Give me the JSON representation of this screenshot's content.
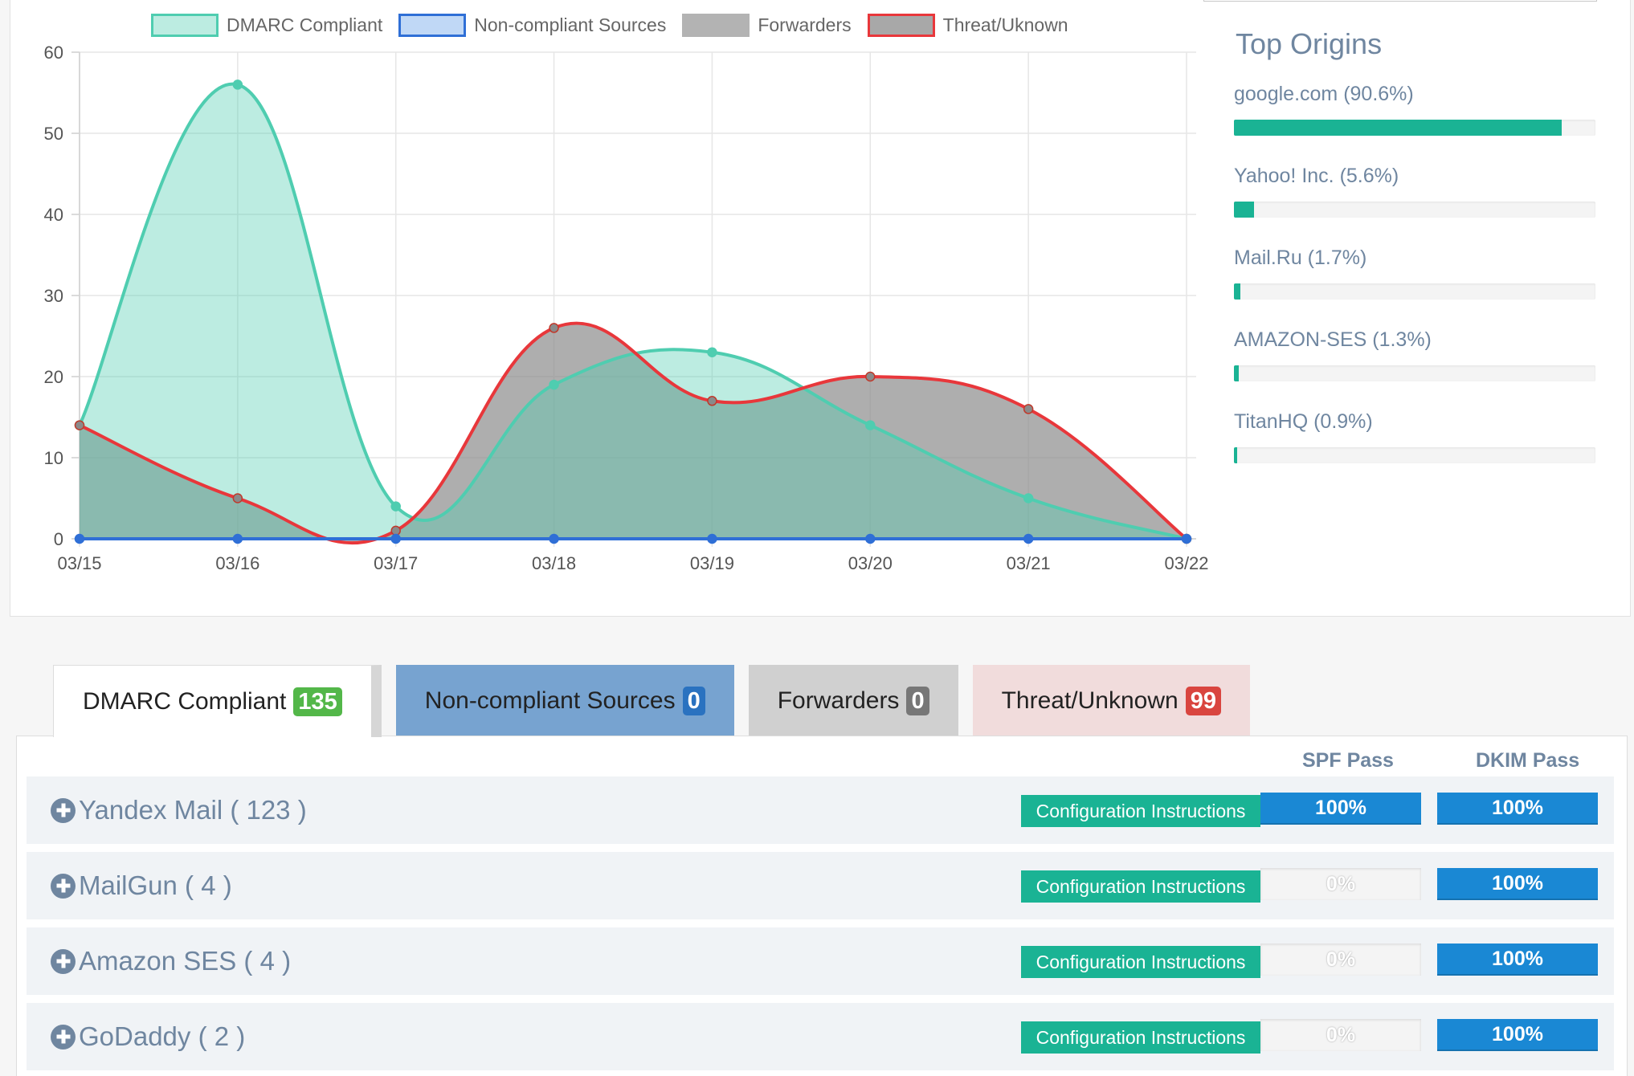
{
  "chart_data": {
    "type": "area",
    "categories": [
      "03/15",
      "03/16",
      "03/17",
      "03/18",
      "03/19",
      "03/20",
      "03/21",
      "03/22"
    ],
    "ylim": [
      0,
      60
    ],
    "yticks": [
      0,
      10,
      20,
      30,
      40,
      50,
      60
    ],
    "grid": true,
    "legend_position": "top",
    "series": [
      {
        "name": "DMARC Compliant",
        "values": [
          14,
          56,
          4,
          19,
          23,
          14,
          5,
          0
        ],
        "stroke": "#4fcdb0",
        "fill": "rgba(79,205,176,0.38)"
      },
      {
        "name": "Non-compliant Sources",
        "values": [
          0,
          0,
          0,
          0,
          0,
          0,
          0,
          0
        ],
        "stroke": "#2f6fd6",
        "fill": "rgba(150,190,240,0.6)"
      },
      {
        "name": "Forwarders",
        "values": [
          0,
          0,
          0,
          0,
          0,
          0,
          0,
          0
        ],
        "stroke": "#b3b3b3",
        "fill": "rgba(160,160,160,0.6)"
      },
      {
        "name": "Threat/Uknown",
        "values": [
          14,
          5,
          1,
          26,
          17,
          20,
          16,
          0
        ],
        "stroke": "#e8373b",
        "fill": "rgba(140,140,140,0.7)"
      }
    ]
  },
  "origins": {
    "title": "Top Origins",
    "items": [
      {
        "label": "google.com (90.6%)",
        "percent": 90.6
      },
      {
        "label": "Yahoo! Inc. (5.6%)",
        "percent": 5.6
      },
      {
        "label": "Mail.Ru (1.7%)",
        "percent": 1.7
      },
      {
        "label": "AMAZON-SES (1.3%)",
        "percent": 1.3
      },
      {
        "label": "TitanHQ (0.9%)",
        "percent": 0.9
      }
    ]
  },
  "tabs": [
    {
      "label": "DMARC Compliant",
      "count": "135",
      "badge_color": "#53b749"
    },
    {
      "label": "Non-compliant Sources",
      "count": "0",
      "badge_color": "#2a72c0"
    },
    {
      "label": "Forwarders",
      "count": "0",
      "badge_color": "#777777"
    },
    {
      "label": "Threat/Unknown",
      "count": "99",
      "badge_color": "#d9453f"
    }
  ],
  "table": {
    "spf_header": "SPF Pass",
    "dkim_header": "DKIM Pass",
    "config_label": "Configuration Instructions",
    "rows": [
      {
        "name": "Yandex Mail ( 123 )",
        "spf": "100%",
        "dkim": "100%"
      },
      {
        "name": "MailGun ( 4 )",
        "spf": "0%",
        "dkim": "100%"
      },
      {
        "name": "Amazon SES ( 4 )",
        "spf": "0%",
        "dkim": "100%"
      },
      {
        "name": "GoDaddy ( 2 )",
        "spf": "0%",
        "dkim": "100%"
      }
    ]
  }
}
